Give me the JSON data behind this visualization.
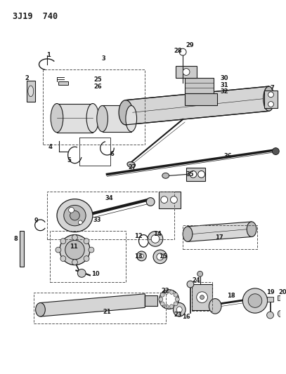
{
  "title": "3J19  740",
  "bg_color": "#ffffff",
  "line_color": "#1a1a1a",
  "label_fontsize": 6.0,
  "title_fontsize": 8.5
}
